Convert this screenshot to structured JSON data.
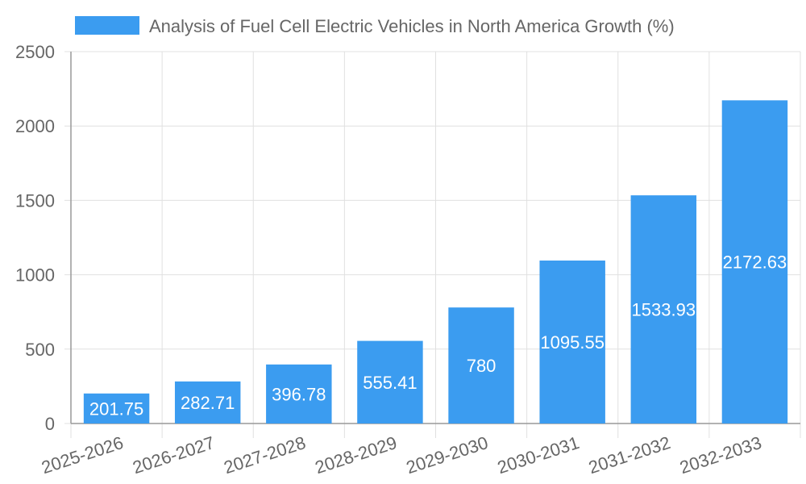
{
  "chart_data": {
    "type": "bar",
    "title": "",
    "xlabel": "",
    "ylabel": "",
    "categories": [
      "2025-2026",
      "2026-2027",
      "2027-2028",
      "2028-2029",
      "2029-2030",
      "2030-2031",
      "2031-2032",
      "2032-2033"
    ],
    "series": [
      {
        "name": "Analysis of Fuel Cell Electric Vehicles in North America Growth (%)",
        "values": [
          201.75,
          282.71,
          396.78,
          555.41,
          780,
          1095.55,
          1533.93,
          2172.63
        ],
        "color": "#3b9cf0"
      }
    ],
    "data_labels": [
      "201.75",
      "282.71",
      "396.78",
      "555.41",
      "780",
      "1095.55",
      "1533.93",
      "2172.63"
    ],
    "ylim": [
      0,
      2500
    ],
    "yticks": [
      0,
      500,
      1000,
      1500,
      2000,
      2500
    ],
    "grid": true,
    "legend_position": "top"
  },
  "colors": {
    "bar": "#3b9cf0",
    "grid": "#e0e0e0",
    "axis": "#999999",
    "text": "#666666",
    "data_label": "#ffffff"
  }
}
